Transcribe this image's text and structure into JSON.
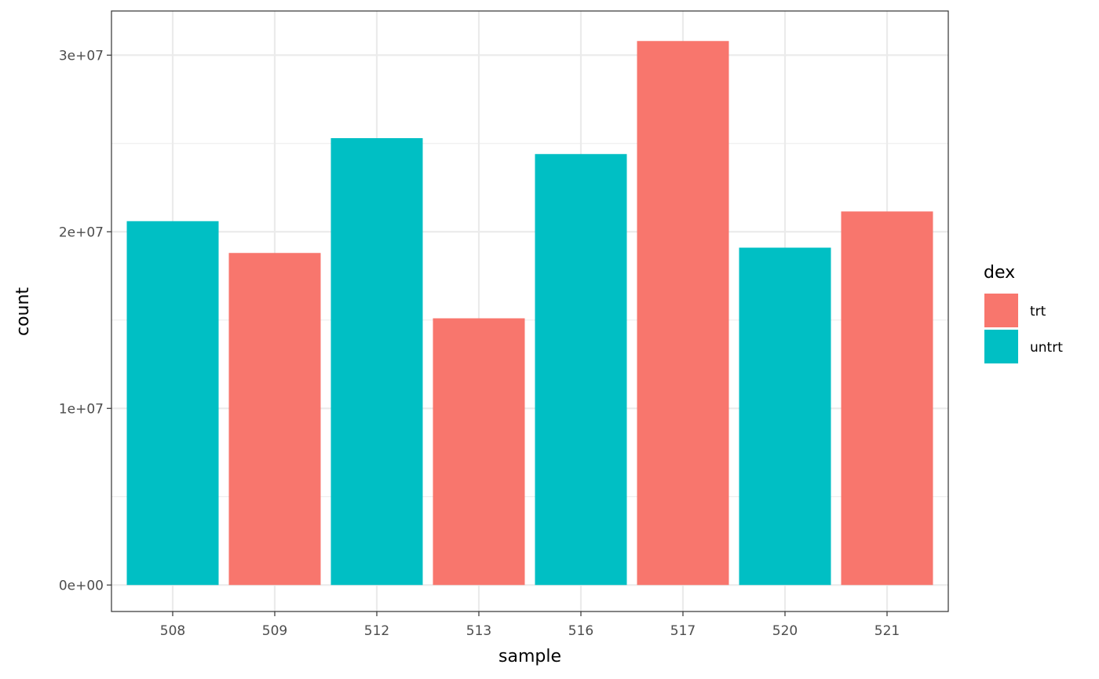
{
  "chart_data": {
    "type": "bar",
    "title": "",
    "xlabel": "sample",
    "ylabel": "count",
    "categories": [
      "508",
      "509",
      "512",
      "513",
      "516",
      "517",
      "520",
      "521"
    ],
    "values": [
      20600000,
      18800000,
      25300000,
      15100000,
      24400000,
      30800000,
      19100000,
      21150000
    ],
    "groups": [
      "untrt",
      "trt",
      "untrt",
      "trt",
      "untrt",
      "trt",
      "untrt",
      "trt"
    ],
    "ylim": [
      -1500000,
      32500000
    ],
    "yticks": [
      0,
      10000000,
      20000000,
      30000000
    ],
    "ytick_labels": [
      "0e+00",
      "1e+07",
      "2e+07",
      "3e+07"
    ],
    "grid": true,
    "legend": {
      "title": "dex",
      "placement": "right",
      "items": [
        {
          "name": "trt",
          "color": "#F8766D"
        },
        {
          "name": "untrt",
          "color": "#00BFC4"
        }
      ]
    }
  }
}
